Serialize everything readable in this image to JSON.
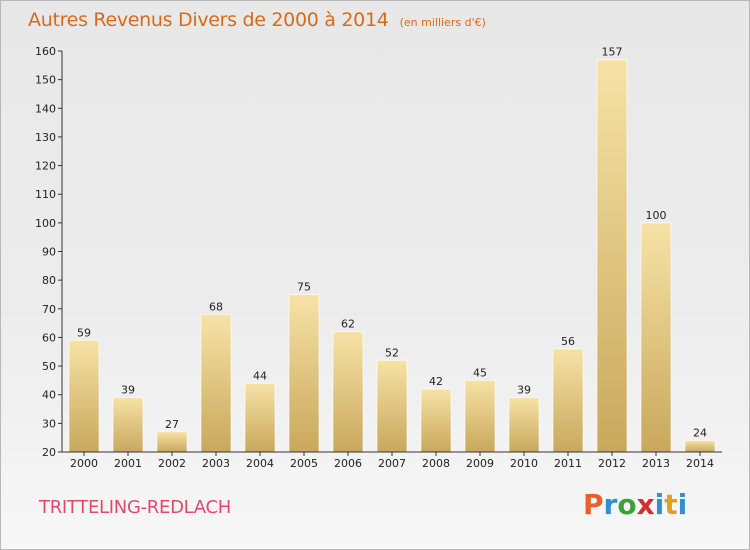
{
  "header": {
    "title": "Autres Revenus Divers de 2000 à 2014",
    "unit": "(en milliers d'€)"
  },
  "footer": {
    "city": "TRITTELING-REDLACH",
    "logo_text": "Proxiti"
  },
  "colors": {
    "title": "#d86a1a",
    "city": "#e04a6a",
    "bar_light": "#f6dfa0",
    "bar_dark": "#c9a95e",
    "logo_letters": [
      "#e8602a",
      "#2f8fd0",
      "#3aa23a",
      "#d03030",
      "#2f8fd0",
      "#e0a020",
      "#2f8fd0"
    ]
  },
  "chart_data": {
    "type": "bar",
    "categories": [
      "2000",
      "2001",
      "2002",
      "2003",
      "2004",
      "2005",
      "2006",
      "2007",
      "2008",
      "2009",
      "2010",
      "2011",
      "2012",
      "2013",
      "2014"
    ],
    "values": [
      59,
      39,
      27,
      68,
      44,
      75,
      62,
      52,
      42,
      45,
      39,
      56,
      157,
      100,
      24
    ],
    "data_labels": [
      "59",
      "39",
      "27",
      "68",
      "44",
      "75",
      "62",
      "52",
      "42",
      "45",
      "39",
      "56",
      "157",
      "100",
      "24"
    ],
    "ylim": [
      20,
      160
    ],
    "yticks": [
      20,
      30,
      40,
      50,
      60,
      70,
      80,
      90,
      100,
      110,
      120,
      130,
      140,
      150,
      160
    ],
    "grid": false,
    "xlabel": "",
    "ylabel": ""
  }
}
